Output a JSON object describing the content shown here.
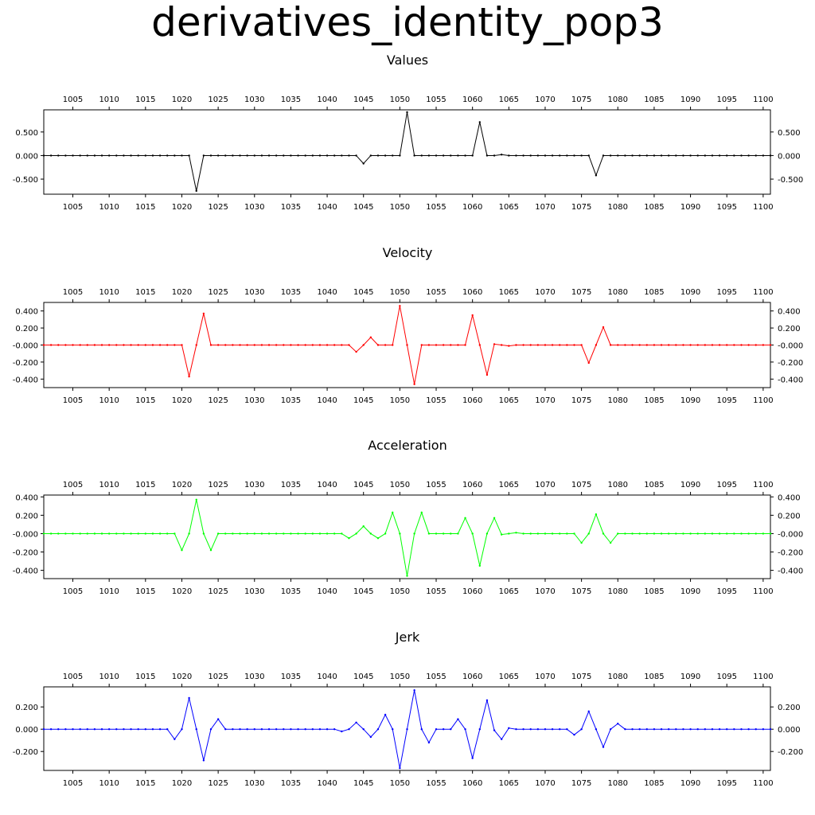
{
  "title": "derivatives_identity_pop3",
  "chart_data": [
    {
      "type": "line",
      "title": "Values",
      "color": "#000000",
      "xlim": [
        1001,
        1101
      ],
      "ylim": [
        -0.82,
        0.97
      ],
      "x_ticks": [
        1005,
        1010,
        1015,
        1020,
        1025,
        1030,
        1035,
        1040,
        1045,
        1050,
        1055,
        1060,
        1065,
        1070,
        1075,
        1080,
        1085,
        1090,
        1095,
        1100
      ],
      "y_ticks": [
        -0.5,
        0,
        0.5
      ],
      "y_tick_labels": [
        "-0.500",
        "0.000",
        "0.500"
      ],
      "x": [
        1001,
        1002,
        1003,
        1004,
        1005,
        1006,
        1007,
        1008,
        1009,
        1010,
        1011,
        1012,
        1013,
        1014,
        1015,
        1016,
        1017,
        1018,
        1019,
        1020,
        1021,
        1022,
        1023,
        1024,
        1025,
        1026,
        1027,
        1028,
        1029,
        1030,
        1031,
        1032,
        1033,
        1034,
        1035,
        1036,
        1037,
        1038,
        1039,
        1040,
        1041,
        1042,
        1043,
        1044,
        1045,
        1046,
        1047,
        1048,
        1049,
        1050,
        1051,
        1052,
        1053,
        1054,
        1055,
        1056,
        1057,
        1058,
        1059,
        1060,
        1061,
        1062,
        1063,
        1064,
        1065,
        1066,
        1067,
        1068,
        1069,
        1070,
        1071,
        1072,
        1073,
        1074,
        1075,
        1076,
        1077,
        1078,
        1079,
        1080,
        1081,
        1082,
        1083,
        1084,
        1085,
        1086,
        1087,
        1088,
        1089,
        1090,
        1091,
        1092,
        1093,
        1094,
        1095,
        1096,
        1097,
        1098,
        1099,
        1100,
        1101
      ],
      "y": [
        0,
        0,
        0,
        0,
        0,
        0,
        0,
        0,
        0,
        0,
        0,
        0,
        0,
        0,
        0,
        0,
        0,
        0,
        0,
        0,
        0,
        -0.75,
        0,
        0,
        0,
        0,
        0,
        0,
        0,
        0,
        0,
        0,
        0,
        0,
        0,
        0,
        0,
        0,
        0,
        0,
        0,
        0,
        0,
        0,
        -0.17,
        0,
        0,
        0,
        0,
        0,
        0.92,
        0,
        0,
        0,
        0,
        0,
        0,
        0,
        0,
        0,
        0.71,
        0,
        0,
        0.02,
        0,
        0,
        0,
        0,
        0,
        0,
        0,
        0,
        0,
        0,
        0,
        0,
        -0.42,
        0,
        0,
        0,
        0,
        0,
        0,
        0,
        0,
        0,
        0,
        0,
        0,
        0,
        0,
        0,
        0,
        0,
        0,
        0,
        0,
        0,
        0,
        0,
        0
      ]
    },
    {
      "type": "line",
      "title": "Velocity",
      "color": "#ff0000",
      "xlim": [
        1001,
        1101
      ],
      "ylim": [
        -0.5,
        0.5
      ],
      "x_ticks": [
        1005,
        1010,
        1015,
        1020,
        1025,
        1030,
        1035,
        1040,
        1045,
        1050,
        1055,
        1060,
        1065,
        1070,
        1075,
        1080,
        1085,
        1090,
        1095,
        1100
      ],
      "y_ticks": [
        -0.4,
        -0.2,
        0,
        0.2,
        0.4
      ],
      "y_tick_labels": [
        "-0.400",
        "-0.200",
        "-0.000",
        "0.200",
        "0.400"
      ],
      "x": [
        1001,
        1002,
        1003,
        1004,
        1005,
        1006,
        1007,
        1008,
        1009,
        1010,
        1011,
        1012,
        1013,
        1014,
        1015,
        1016,
        1017,
        1018,
        1019,
        1020,
        1021,
        1022,
        1023,
        1024,
        1025,
        1026,
        1027,
        1028,
        1029,
        1030,
        1031,
        1032,
        1033,
        1034,
        1035,
        1036,
        1037,
        1038,
        1039,
        1040,
        1041,
        1042,
        1043,
        1044,
        1045,
        1046,
        1047,
        1048,
        1049,
        1050,
        1051,
        1052,
        1053,
        1054,
        1055,
        1056,
        1057,
        1058,
        1059,
        1060,
        1061,
        1062,
        1063,
        1064,
        1065,
        1066,
        1067,
        1068,
        1069,
        1070,
        1071,
        1072,
        1073,
        1074,
        1075,
        1076,
        1077,
        1078,
        1079,
        1080,
        1081,
        1082,
        1083,
        1084,
        1085,
        1086,
        1087,
        1088,
        1089,
        1090,
        1091,
        1092,
        1093,
        1094,
        1095,
        1096,
        1097,
        1098,
        1099,
        1100,
        1101
      ],
      "y": [
        0,
        0,
        0,
        0,
        0,
        0,
        0,
        0,
        0,
        0,
        0,
        0,
        0,
        0,
        0,
        0,
        0,
        0,
        0,
        0,
        -0.37,
        0,
        0.37,
        0,
        0,
        0,
        0,
        0,
        0,
        0,
        0,
        0,
        0,
        0,
        0,
        0,
        0,
        0,
        0,
        0,
        0,
        0,
        0,
        -0.08,
        0,
        0.09,
        0,
        0,
        0,
        0.46,
        0,
        -0.46,
        0,
        0,
        0,
        0,
        0,
        0,
        0,
        0.35,
        0,
        -0.35,
        0.01,
        0,
        -0.01,
        0,
        0,
        0,
        0,
        0,
        0,
        0,
        0,
        0,
        0,
        -0.21,
        0,
        0.21,
        0,
        0,
        0,
        0,
        0,
        0,
        0,
        0,
        0,
        0,
        0,
        0,
        0,
        0,
        0,
        0,
        0,
        0,
        0,
        0,
        0,
        0,
        0
      ]
    },
    {
      "type": "line",
      "title": "Acceleration",
      "color": "#00ff00",
      "xlim": [
        1001,
        1101
      ],
      "ylim": [
        -0.49,
        0.42
      ],
      "x_ticks": [
        1005,
        1010,
        1015,
        1020,
        1025,
        1030,
        1035,
        1040,
        1045,
        1050,
        1055,
        1060,
        1065,
        1070,
        1075,
        1080,
        1085,
        1090,
        1095,
        1100
      ],
      "y_ticks": [
        -0.4,
        -0.2,
        0,
        0.2,
        0.4
      ],
      "y_tick_labels": [
        "-0.400",
        "-0.200",
        "-0.000",
        "0.200",
        "0.400"
      ],
      "x": [
        1001,
        1002,
        1003,
        1004,
        1005,
        1006,
        1007,
        1008,
        1009,
        1010,
        1011,
        1012,
        1013,
        1014,
        1015,
        1016,
        1017,
        1018,
        1019,
        1020,
        1021,
        1022,
        1023,
        1024,
        1025,
        1026,
        1027,
        1028,
        1029,
        1030,
        1031,
        1032,
        1033,
        1034,
        1035,
        1036,
        1037,
        1038,
        1039,
        1040,
        1041,
        1042,
        1043,
        1044,
        1045,
        1046,
        1047,
        1048,
        1049,
        1050,
        1051,
        1052,
        1053,
        1054,
        1055,
        1056,
        1057,
        1058,
        1059,
        1060,
        1061,
        1062,
        1063,
        1064,
        1065,
        1066,
        1067,
        1068,
        1069,
        1070,
        1071,
        1072,
        1073,
        1074,
        1075,
        1076,
        1077,
        1078,
        1079,
        1080,
        1081,
        1082,
        1083,
        1084,
        1085,
        1086,
        1087,
        1088,
        1089,
        1090,
        1091,
        1092,
        1093,
        1094,
        1095,
        1096,
        1097,
        1098,
        1099,
        1100,
        1101
      ],
      "y": [
        0,
        0,
        0,
        0,
        0,
        0,
        0,
        0,
        0,
        0,
        0,
        0,
        0,
        0,
        0,
        0,
        0,
        0,
        0,
        -0.18,
        0,
        0.37,
        0,
        -0.18,
        0,
        0,
        0,
        0,
        0,
        0,
        0,
        0,
        0,
        0,
        0,
        0,
        0,
        0,
        0,
        0,
        0,
        0,
        -0.05,
        0,
        0.08,
        0,
        -0.05,
        0,
        0.23,
        0,
        -0.46,
        0,
        0.23,
        0,
        0,
        0,
        0,
        0,
        0.17,
        0,
        -0.35,
        0,
        0.17,
        -0.01,
        0,
        0.01,
        0,
        0,
        0,
        0,
        0,
        0,
        0,
        0,
        -0.1,
        0,
        0.21,
        0,
        -0.1,
        0,
        0,
        0,
        0,
        0,
        0,
        0,
        0,
        0,
        0,
        0,
        0,
        0,
        0,
        0,
        0,
        0,
        0,
        0,
        0,
        0,
        0
      ]
    },
    {
      "type": "line",
      "title": "Jerk",
      "color": "#0000ff",
      "xlim": [
        1001,
        1101
      ],
      "ylim": [
        -0.37,
        0.38
      ],
      "x_ticks": [
        1005,
        1010,
        1015,
        1020,
        1025,
        1030,
        1035,
        1040,
        1045,
        1050,
        1055,
        1060,
        1065,
        1070,
        1075,
        1080,
        1085,
        1090,
        1095,
        1100
      ],
      "y_ticks": [
        -0.2,
        0,
        0.2
      ],
      "y_tick_labels": [
        "-0.200",
        "0.000",
        "0.200"
      ],
      "x": [
        1001,
        1002,
        1003,
        1004,
        1005,
        1006,
        1007,
        1008,
        1009,
        1010,
        1011,
        1012,
        1013,
        1014,
        1015,
        1016,
        1017,
        1018,
        1019,
        1020,
        1021,
        1022,
        1023,
        1024,
        1025,
        1026,
        1027,
        1028,
        1029,
        1030,
        1031,
        1032,
        1033,
        1034,
        1035,
        1036,
        1037,
        1038,
        1039,
        1040,
        1041,
        1042,
        1043,
        1044,
        1045,
        1046,
        1047,
        1048,
        1049,
        1050,
        1051,
        1052,
        1053,
        1054,
        1055,
        1056,
        1057,
        1058,
        1059,
        1060,
        1061,
        1062,
        1063,
        1064,
        1065,
        1066,
        1067,
        1068,
        1069,
        1070,
        1071,
        1072,
        1073,
        1074,
        1075,
        1076,
        1077,
        1078,
        1079,
        1080,
        1081,
        1082,
        1083,
        1084,
        1085,
        1086,
        1087,
        1088,
        1089,
        1090,
        1091,
        1092,
        1093,
        1094,
        1095,
        1096,
        1097,
        1098,
        1099,
        1100,
        1101
      ],
      "y": [
        0,
        0,
        0,
        0,
        0,
        0,
        0,
        0,
        0,
        0,
        0,
        0,
        0,
        0,
        0,
        0,
        0,
        0,
        -0.09,
        0,
        0.28,
        0,
        -0.28,
        0,
        0.09,
        0,
        0,
        0,
        0,
        0,
        0,
        0,
        0,
        0,
        0,
        0,
        0,
        0,
        0,
        0,
        0,
        -0.02,
        0,
        0.06,
        0,
        -0.07,
        0,
        0.13,
        0,
        -0.35,
        0,
        0.35,
        0,
        -0.12,
        0,
        0,
        0,
        0.09,
        0,
        -0.26,
        0,
        0.26,
        -0.01,
        -0.09,
        0.01,
        0,
        0,
        0,
        0,
        0,
        0,
        0,
        0,
        -0.05,
        0,
        0.16,
        0,
        -0.16,
        0,
        0.05,
        0,
        0,
        0,
        0,
        0,
        0,
        0,
        0,
        0,
        0,
        0,
        0,
        0,
        0,
        0,
        0,
        0,
        0,
        0,
        0,
        0
      ]
    }
  ]
}
